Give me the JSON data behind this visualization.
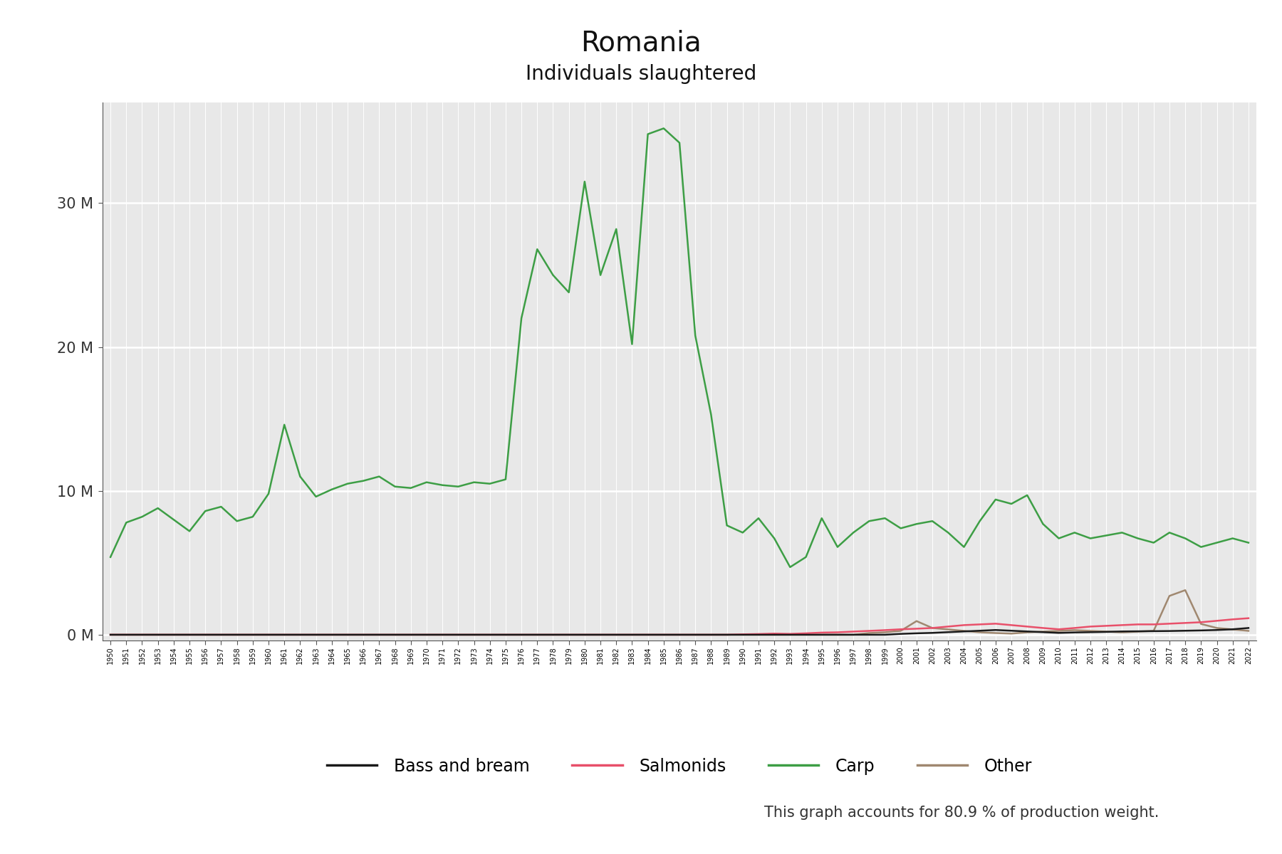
{
  "title": "Romania",
  "subtitle": "Individuals slaughtered",
  "footnote": "This graph accounts for 80.9 % of production weight.",
  "title_fontsize": 28,
  "subtitle_fontsize": 20,
  "footnote_fontsize": 15,
  "background_color": "#ffffff",
  "plot_bg_color": "#e8e8e8",
  "legend_labels": [
    "Bass and bream",
    "Salmonids",
    "Carp",
    "Other"
  ],
  "legend_colors": [
    "#1a1a1a",
    "#e8506a",
    "#3d9e45",
    "#a08870"
  ],
  "years": [
    1950,
    1951,
    1952,
    1953,
    1954,
    1955,
    1956,
    1957,
    1958,
    1959,
    1960,
    1961,
    1962,
    1963,
    1964,
    1965,
    1966,
    1967,
    1968,
    1969,
    1970,
    1971,
    1972,
    1973,
    1974,
    1975,
    1976,
    1977,
    1978,
    1979,
    1980,
    1981,
    1982,
    1983,
    1984,
    1985,
    1986,
    1987,
    1988,
    1989,
    1990,
    1991,
    1992,
    1993,
    1994,
    1995,
    1996,
    1997,
    1998,
    1999,
    2000,
    2001,
    2002,
    2003,
    2004,
    2005,
    2006,
    2007,
    2008,
    2009,
    2010,
    2011,
    2012,
    2013,
    2014,
    2015,
    2016,
    2017,
    2018,
    2019,
    2020,
    2021,
    2022
  ],
  "carp": [
    5400000,
    7800000,
    8200000,
    8800000,
    8000000,
    7200000,
    8600000,
    8900000,
    7900000,
    8200000,
    9800000,
    14600000,
    11000000,
    9600000,
    10100000,
    10500000,
    10700000,
    11000000,
    10300000,
    10200000,
    10600000,
    10400000,
    10300000,
    10600000,
    10500000,
    10800000,
    22000000,
    26800000,
    25000000,
    23800000,
    31500000,
    25000000,
    28200000,
    20200000,
    34800000,
    35200000,
    34200000,
    20800000,
    15300000,
    7600000,
    7100000,
    8100000,
    6700000,
    4700000,
    5400000,
    8100000,
    6100000,
    7100000,
    7900000,
    8100000,
    7400000,
    7700000,
    7900000,
    7100000,
    6100000,
    7900000,
    9400000,
    9100000,
    9700000,
    7700000,
    6700000,
    7100000,
    6700000,
    6900000,
    7100000,
    6700000,
    6400000,
    7100000,
    6700000,
    6100000,
    6400000,
    6700000,
    6400000
  ],
  "salmonids": [
    0,
    0,
    0,
    0,
    0,
    0,
    0,
    0,
    0,
    0,
    0,
    0,
    0,
    0,
    0,
    0,
    0,
    0,
    0,
    0,
    0,
    0,
    0,
    0,
    0,
    0,
    0,
    0,
    0,
    0,
    0,
    0,
    0,
    0,
    0,
    0,
    0,
    0,
    0,
    0,
    30000,
    50000,
    80000,
    60000,
    100000,
    150000,
    170000,
    220000,
    270000,
    320000,
    380000,
    420000,
    470000,
    570000,
    670000,
    720000,
    770000,
    670000,
    570000,
    470000,
    380000,
    470000,
    570000,
    620000,
    670000,
    720000,
    720000,
    770000,
    820000,
    870000,
    970000,
    1070000,
    1150000
  ],
  "bass_bream": [
    0,
    0,
    0,
    0,
    0,
    0,
    0,
    0,
    0,
    0,
    0,
    0,
    0,
    0,
    0,
    0,
    0,
    0,
    0,
    0,
    0,
    0,
    0,
    0,
    0,
    0,
    0,
    0,
    0,
    0,
    0,
    0,
    0,
    0,
    0,
    0,
    0,
    0,
    0,
    0,
    0,
    0,
    0,
    0,
    0,
    0,
    0,
    0,
    0,
    0,
    60000,
    100000,
    130000,
    180000,
    230000,
    280000,
    330000,
    280000,
    230000,
    180000,
    130000,
    160000,
    180000,
    200000,
    230000,
    240000,
    250000,
    260000,
    280000,
    300000,
    330000,
    380000,
    470000
  ],
  "other": [
    0,
    0,
    0,
    0,
    0,
    0,
    0,
    0,
    0,
    0,
    0,
    0,
    0,
    0,
    0,
    0,
    0,
    0,
    0,
    0,
    0,
    0,
    0,
    0,
    0,
    0,
    0,
    0,
    0,
    0,
    0,
    0,
    0,
    0,
    0,
    0,
    0,
    0,
    0,
    0,
    0,
    0,
    0,
    0,
    0,
    0,
    0,
    0,
    120000,
    170000,
    270000,
    950000,
    470000,
    370000,
    270000,
    170000,
    120000,
    80000,
    170000,
    220000,
    270000,
    320000,
    270000,
    220000,
    170000,
    220000,
    270000,
    2700000,
    3100000,
    750000,
    470000,
    370000,
    270000
  ],
  "ylim": [
    -400000,
    37000000
  ],
  "ytick_values": [
    0,
    10000000,
    20000000,
    30000000
  ],
  "ytick_labels": [
    "0 M",
    "10 M",
    "20 M",
    "30 M"
  ]
}
